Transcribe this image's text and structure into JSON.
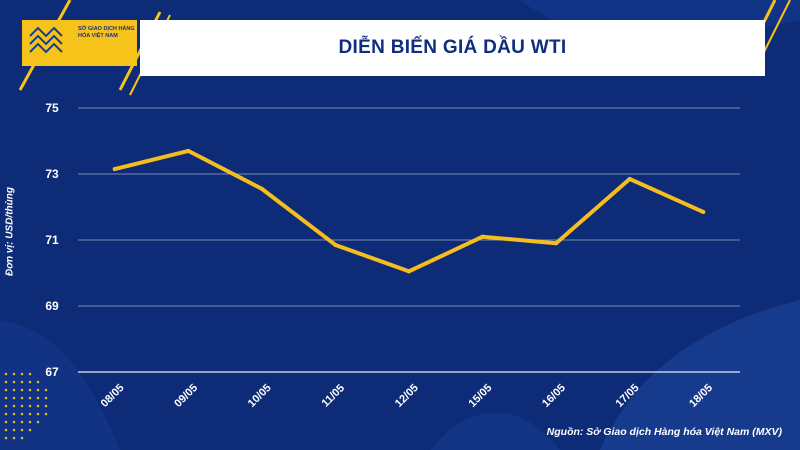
{
  "header": {
    "logo_text": "SỞ GIAO DỊCH HÀNG HÓA VIỆT NAM",
    "title": "DIỄN BIẾN GIÁ DẦU WTI"
  },
  "source_note": "Nguồn: Sở Giao dịch Hàng hóa Việt Nam (MXV)",
  "colors": {
    "background": "#0e2b78",
    "line": "#f6bd1f",
    "accent": "#f6c31a",
    "grid": "#ffffff"
  },
  "chart_data": {
    "type": "line",
    "title": "DIỄN BIẾN GIÁ DẦU WTI",
    "xlabel": "",
    "ylabel": "Đơn vị: USD/thùng",
    "categories": [
      "08/05",
      "09/05",
      "10/05",
      "11/05",
      "12/05",
      "15/05",
      "16/05",
      "17/05",
      "18/05"
    ],
    "series": [
      {
        "values": [
          73.15,
          73.7,
          72.55,
          70.85,
          70.05,
          71.1,
          70.9,
          72.85,
          71.85
        ]
      }
    ],
    "ylim": [
      67,
      75
    ],
    "yticks": [
      67,
      69,
      71,
      73,
      75
    ],
    "grid": true,
    "legend": "none"
  }
}
